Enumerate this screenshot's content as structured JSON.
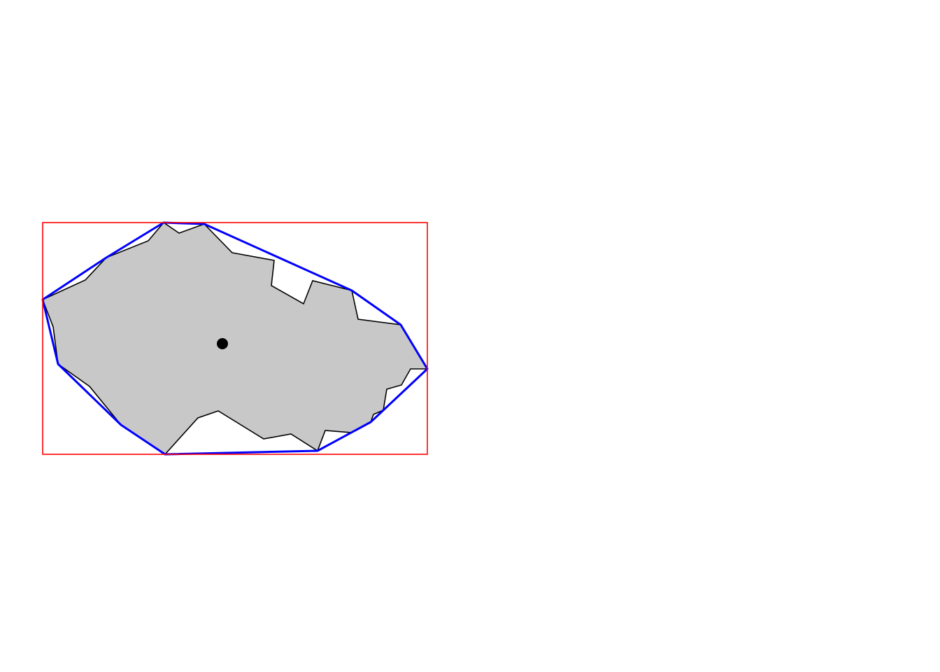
{
  "colors": {
    "background": "#ffffff",
    "polygon_fill": "#c8c8c8",
    "polygon_stroke": "#000000",
    "hull_stroke": "#0000ff",
    "bbox_stroke": "#ff0000",
    "centroid_fill": "#000000"
  },
  "shapes": {
    "bounding_box": {
      "name": "bounding-box"
    },
    "polygon": {
      "name": "polygon-shape"
    },
    "convex_hull": {
      "name": "convex-hull"
    },
    "centroid": {
      "name": "centroid-point"
    }
  }
}
